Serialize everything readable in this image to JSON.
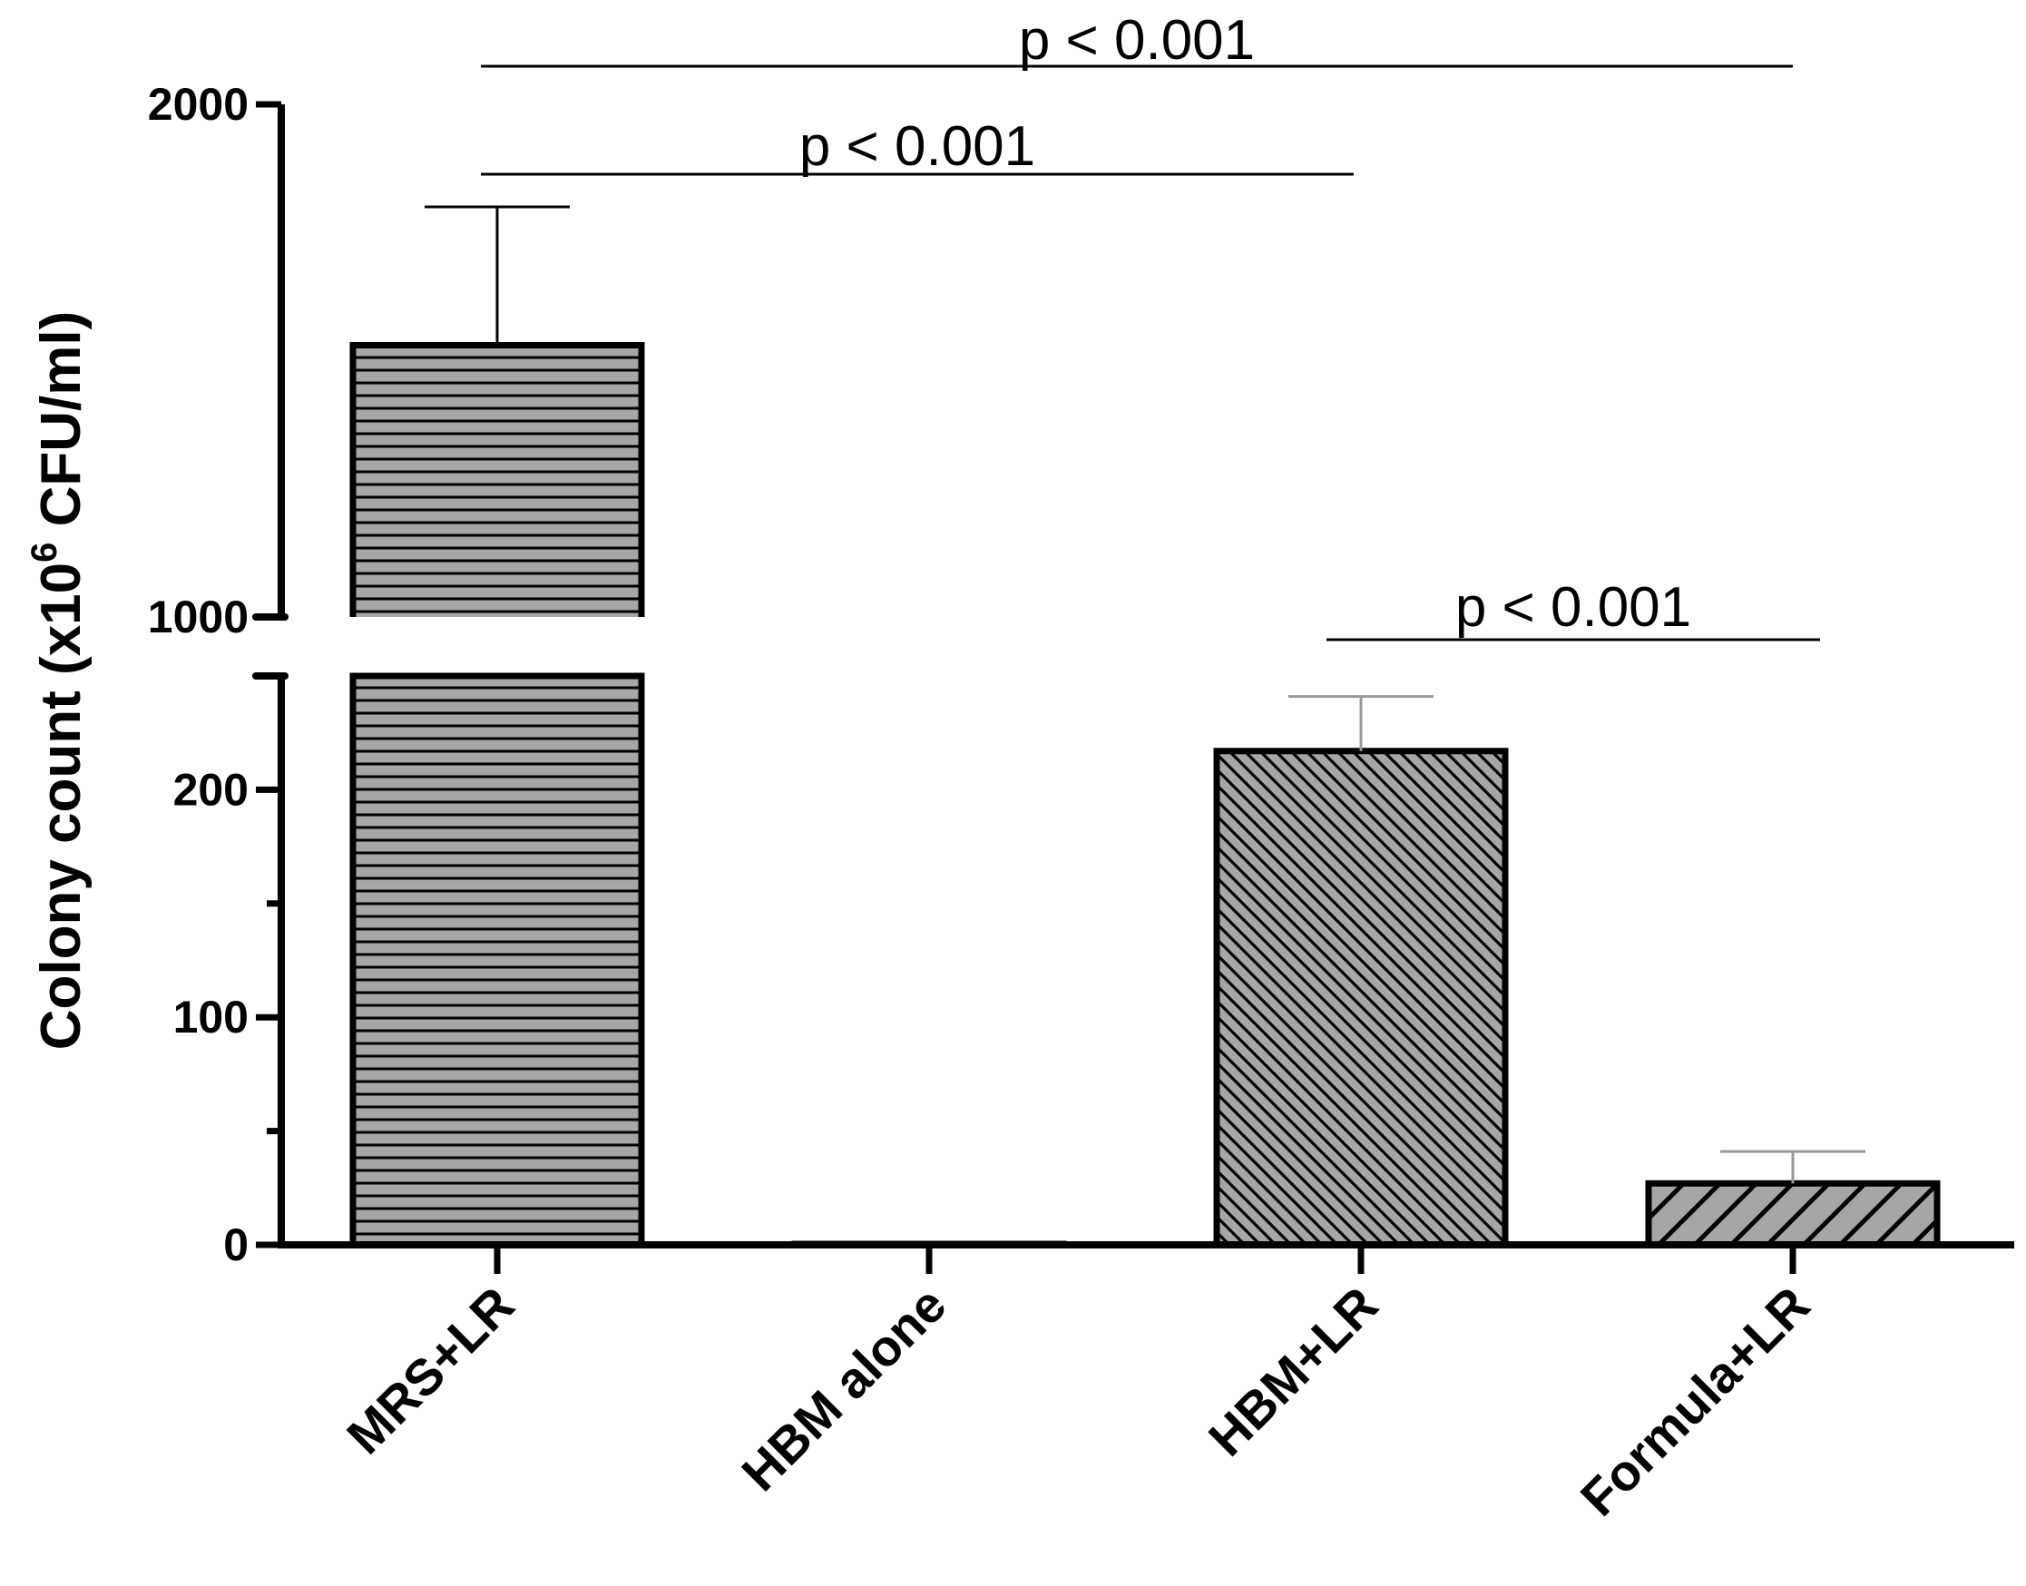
{
  "chart_data": {
    "type": "bar",
    "y_axis": "broken",
    "ylabel": {
      "prefix": "Colony count (x10",
      "superscript": "6",
      "suffix": " CFU/ml)"
    },
    "categories": [
      "MRS+LR",
      "HBM alone",
      "HBM+LR",
      "Formula+LR"
    ],
    "values": [
      1530,
      1,
      217,
      27
    ],
    "errors": [
      270,
      0,
      24,
      14
    ],
    "patterns": [
      "horizontal",
      "none",
      "diagonal-fine",
      "diagonal-wide"
    ],
    "lower_segment": {
      "ylim": [
        0,
        250
      ],
      "ticks": [
        0,
        100,
        200
      ],
      "minor_ticks": [
        50,
        150
      ]
    },
    "upper_segment": {
      "ylim": [
        1000,
        2000
      ],
      "ticks": [
        1000,
        2000
      ]
    },
    "grid": false,
    "legend": "none",
    "significance": [
      {
        "from": "MRS+LR",
        "to": "Formula+LR",
        "label": "p < 0.001"
      },
      {
        "from": "MRS+LR",
        "to": "HBM+LR",
        "label": "p < 0.001"
      },
      {
        "from": "HBM+LR",
        "to": "Formula+LR",
        "label": "p < 0.001"
      }
    ],
    "colors": {
      "bar_fill": "#a6a6a6",
      "stroke": "#000000",
      "error_upper": "#000000",
      "error_lower": "#999999"
    }
  }
}
